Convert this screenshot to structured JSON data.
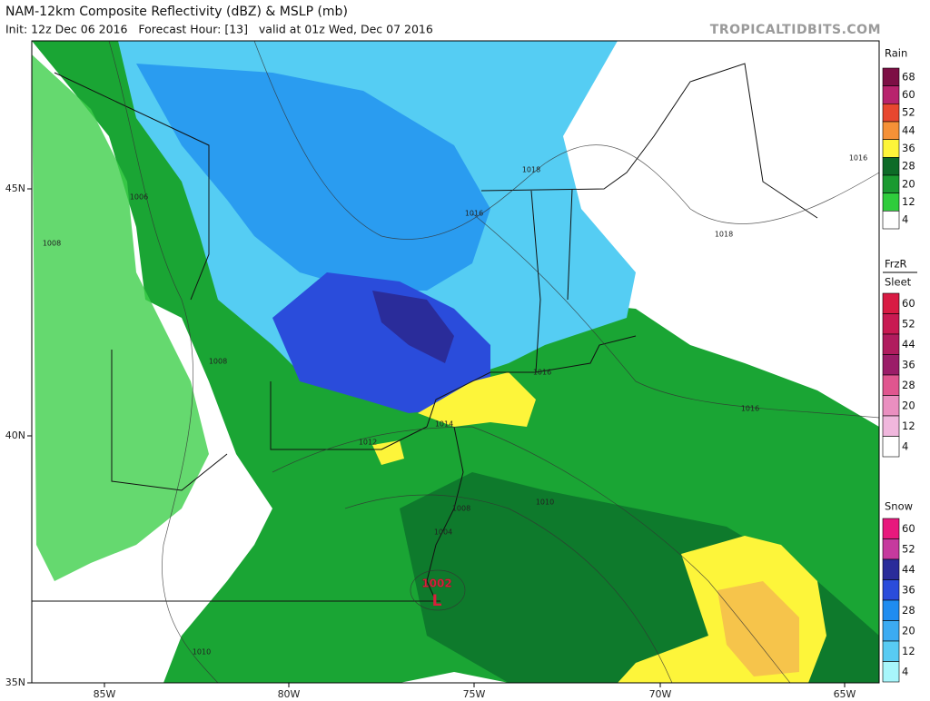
{
  "header": {
    "title": "NAM-12km Composite Reflectivity (dBZ) & MSLP (mb)",
    "subtitle": "Init: 12z Dec 06 2016   Forecast Hour: [13]   valid at 01z Wed, Dec 07 2016",
    "source": "TROPICALTIDBITS.COM"
  },
  "map": {
    "lat_labels": [
      "45N",
      "40N",
      "35N"
    ],
    "lon_labels": [
      "85W",
      "80W",
      "75W",
      "70W",
      "65W"
    ],
    "isobar_labels": [
      "1006",
      "1008",
      "1008",
      "1018",
      "1016",
      "1018",
      "1016",
      "1016",
      "1016",
      "1014",
      "1012",
      "1010",
      "1008",
      "1004",
      "1010"
    ],
    "low": {
      "pressure": "1002",
      "label": "L"
    }
  },
  "legend": [
    {
      "title": [
        "Rain"
      ],
      "ticks": [
        68,
        60,
        52,
        44,
        36,
        28,
        20,
        12,
        4
      ],
      "colors": [
        "#7d0f45",
        "#b8236d",
        "#e8472f",
        "#f59137",
        "#fdf53a",
        "#0d6b27",
        "#1a9a30",
        "#2fcc3c",
        "#ffffff"
      ]
    },
    {
      "title": [
        "FrzR",
        "Sleet"
      ],
      "ticks": [
        60,
        52,
        44,
        36,
        28,
        20,
        12,
        4
      ],
      "colors": [
        "#d81b43",
        "#c81a52",
        "#b01c5e",
        "#9b1d68",
        "#e0568f",
        "#ea8fc0",
        "#f0b7dd",
        "#ffffff"
      ]
    },
    {
      "title": [
        "Snow"
      ],
      "ticks": [
        60,
        52,
        44,
        36,
        28,
        20,
        12,
        4
      ],
      "colors": [
        "#e8187d",
        "#c63a9e",
        "#2a2c9a",
        "#2a4cdb",
        "#1f8cf0",
        "#3cabf2",
        "#58cbf3",
        "#a8f6fb"
      ]
    }
  ]
}
